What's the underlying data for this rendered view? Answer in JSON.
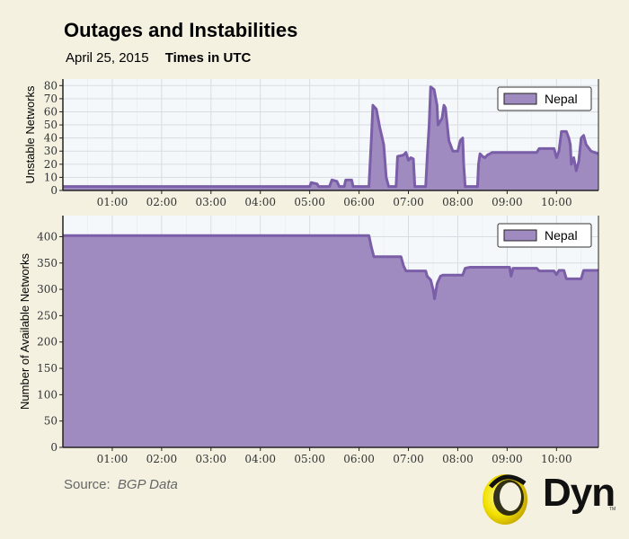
{
  "header": {
    "title": "Outages and Instabilities",
    "date": "April 25, 2015",
    "timezone_note": "Times in UTC"
  },
  "footer": {
    "source_label": "Source:",
    "source_value": "BGP Data",
    "logo_text": "Dyn",
    "logo_tm": "TM"
  },
  "colors": {
    "fill": "#a08bc1",
    "stroke": "#7a5ea8",
    "plot_bg": "#f5f8fa",
    "grid": "#d8dde3"
  },
  "chart_data": [
    {
      "type": "area",
      "ylabel": "Unstable Networks",
      "xlabel": "",
      "ylim": [
        0,
        85
      ],
      "yticks": [
        0,
        10,
        20,
        30,
        40,
        50,
        60,
        70,
        80
      ],
      "xlim": [
        0,
        10.85
      ],
      "xticks": [
        1,
        2,
        3,
        4,
        5,
        6,
        7,
        8,
        9,
        10
      ],
      "xtick_labels": [
        "01:00",
        "02:00",
        "03:00",
        "04:00",
        "05:00",
        "06:00",
        "07:00",
        "08:00",
        "09:00",
        "10:00"
      ],
      "grid": true,
      "legend": {
        "position": "top-right",
        "entries": [
          "Nepal"
        ]
      },
      "series": [
        {
          "name": "Nepal",
          "points": [
            [
              0,
              3
            ],
            [
              5.0,
              3
            ],
            [
              5.03,
              6
            ],
            [
              5.15,
              5
            ],
            [
              5.18,
              3
            ],
            [
              5.4,
              3
            ],
            [
              5.45,
              8
            ],
            [
              5.55,
              7
            ],
            [
              5.6,
              3
            ],
            [
              5.7,
              3
            ],
            [
              5.73,
              8
            ],
            [
              5.85,
              8
            ],
            [
              5.88,
              3
            ],
            [
              6.2,
              3
            ],
            [
              6.25,
              40
            ],
            [
              6.28,
              65
            ],
            [
              6.35,
              62
            ],
            [
              6.42,
              48
            ],
            [
              6.5,
              35
            ],
            [
              6.55,
              10
            ],
            [
              6.6,
              3
            ],
            [
              6.75,
              3
            ],
            [
              6.78,
              26
            ],
            [
              6.9,
              27
            ],
            [
              6.95,
              29
            ],
            [
              7.0,
              23
            ],
            [
              7.05,
              25
            ],
            [
              7.1,
              24
            ],
            [
              7.13,
              3
            ],
            [
              7.35,
              3
            ],
            [
              7.38,
              25
            ],
            [
              7.42,
              50
            ],
            [
              7.45,
              79
            ],
            [
              7.52,
              77
            ],
            [
              7.58,
              65
            ],
            [
              7.6,
              50
            ],
            [
              7.68,
              55
            ],
            [
              7.72,
              65
            ],
            [
              7.75,
              63
            ],
            [
              7.82,
              38
            ],
            [
              7.9,
              30
            ],
            [
              8.0,
              30
            ],
            [
              8.05,
              38
            ],
            [
              8.1,
              40
            ],
            [
              8.12,
              20
            ],
            [
              8.15,
              3
            ],
            [
              8.4,
              3
            ],
            [
              8.42,
              20
            ],
            [
              8.45,
              28
            ],
            [
              8.5,
              26
            ],
            [
              8.55,
              25
            ],
            [
              8.6,
              27
            ],
            [
              8.65,
              28
            ],
            [
              8.7,
              29
            ],
            [
              9.6,
              29
            ],
            [
              9.65,
              32
            ],
            [
              9.95,
              32
            ],
            [
              10.0,
              25
            ],
            [
              10.05,
              30
            ],
            [
              10.1,
              45
            ],
            [
              10.2,
              45
            ],
            [
              10.25,
              40
            ],
            [
              10.28,
              35
            ],
            [
              10.3,
              20
            ],
            [
              10.35,
              25
            ],
            [
              10.4,
              15
            ],
            [
              10.45,
              22
            ],
            [
              10.5,
              40
            ],
            [
              10.55,
              42
            ],
            [
              10.6,
              35
            ],
            [
              10.7,
              30
            ],
            [
              10.85,
              28
            ]
          ]
        }
      ]
    },
    {
      "type": "area",
      "ylabel": "Number of Available Networks",
      "xlabel": "",
      "ylim": [
        0,
        440
      ],
      "yticks": [
        0,
        50,
        100,
        150,
        200,
        250,
        300,
        350,
        400
      ],
      "xlim": [
        0,
        10.85
      ],
      "xticks": [
        1,
        2,
        3,
        4,
        5,
        6,
        7,
        8,
        9,
        10
      ],
      "xtick_labels": [
        "01:00",
        "02:00",
        "03:00",
        "04:00",
        "05:00",
        "06:00",
        "07:00",
        "08:00",
        "09:00",
        "10:00"
      ],
      "grid": true,
      "legend": {
        "position": "top-right",
        "entries": [
          "Nepal"
        ]
      },
      "series": [
        {
          "name": "Nepal",
          "points": [
            [
              0,
              402
            ],
            [
              6.2,
              402
            ],
            [
              6.25,
              380
            ],
            [
              6.3,
              362
            ],
            [
              6.85,
              362
            ],
            [
              6.9,
              345
            ],
            [
              6.95,
              335
            ],
            [
              7.35,
              335
            ],
            [
              7.38,
              325
            ],
            [
              7.45,
              318
            ],
            [
              7.5,
              300
            ],
            [
              7.53,
              282
            ],
            [
              7.58,
              310
            ],
            [
              7.6,
              315
            ],
            [
              7.65,
              325
            ],
            [
              7.7,
              327
            ],
            [
              8.1,
              327
            ],
            [
              8.15,
              340
            ],
            [
              8.25,
              342
            ],
            [
              9.05,
              342
            ],
            [
              9.08,
              325
            ],
            [
              9.12,
              340
            ],
            [
              9.6,
              340
            ],
            [
              9.65,
              335
            ],
            [
              9.95,
              335
            ],
            [
              10.0,
              328
            ],
            [
              10.05,
              336
            ],
            [
              10.15,
              336
            ],
            [
              10.2,
              320
            ],
            [
              10.5,
              320
            ],
            [
              10.55,
              336
            ],
            [
              10.85,
              336
            ]
          ]
        }
      ]
    }
  ]
}
